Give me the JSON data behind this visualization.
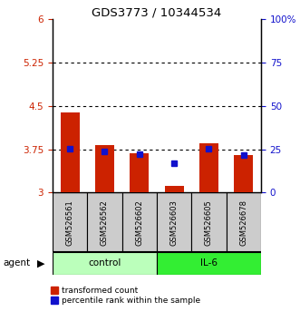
{
  "title": "GDS3773 / 10344534",
  "samples": [
    "GSM526561",
    "GSM526562",
    "GSM526602",
    "GSM526603",
    "GSM526605",
    "GSM526678"
  ],
  "red_values": [
    4.38,
    3.82,
    3.68,
    3.12,
    3.85,
    3.65
  ],
  "blue_values": [
    25.5,
    23.5,
    22.0,
    17.0,
    25.5,
    21.5
  ],
  "ylim_left": [
    3.0,
    6.0
  ],
  "ylim_right": [
    0,
    100
  ],
  "yticks_left": [
    3.0,
    3.75,
    4.5,
    5.25,
    6.0
  ],
  "ytick_labels_left": [
    "3",
    "3.75",
    "4.5",
    "5.25",
    "6"
  ],
  "yticks_right": [
    0,
    25,
    50,
    75,
    100
  ],
  "ytick_labels_right": [
    "0",
    "25",
    "50",
    "75",
    "100%"
  ],
  "hlines": [
    3.75,
    4.5,
    5.25
  ],
  "red_color": "#cc2200",
  "blue_color": "#1111cc",
  "control_color": "#bbffbb",
  "il6_color": "#33ee33",
  "sample_bg_color": "#cccccc",
  "legend_red": "transformed count",
  "legend_blue": "percentile rank within the sample",
  "agent_label": "agent",
  "group_label_control": "control",
  "group_label_il6": "IL-6"
}
